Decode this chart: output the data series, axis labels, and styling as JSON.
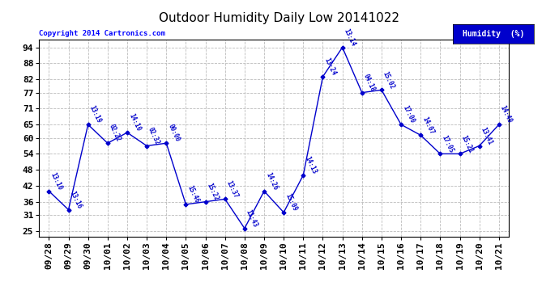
{
  "title": "Outdoor Humidity Daily Low 20141022",
  "copyright": "Copyright 2014 Cartronics.com",
  "legend_label": "Humidity  (%)",
  "dates": [
    "09/28",
    "09/29",
    "09/30",
    "10/01",
    "10/02",
    "10/03",
    "10/04",
    "10/05",
    "10/06",
    "10/07",
    "10/08",
    "10/09",
    "10/10",
    "10/11",
    "10/12",
    "10/13",
    "10/14",
    "10/15",
    "10/16",
    "10/17",
    "10/18",
    "10/19",
    "10/20",
    "10/21"
  ],
  "values": [
    40,
    33,
    65,
    58,
    62,
    57,
    58,
    35,
    36,
    37,
    26,
    40,
    32,
    46,
    83,
    94,
    77,
    78,
    65,
    61,
    54,
    54,
    57,
    65
  ],
  "time_labels": [
    "13:10",
    "13:16",
    "13:19",
    "02:22",
    "14:10",
    "02:32",
    "00:00",
    "15:46",
    "15:22",
    "13:37",
    "11:43",
    "14:26",
    "15:09",
    "14:13",
    "13:24",
    "13:14",
    "04:18",
    "15:02",
    "17:00",
    "14:07",
    "17:05",
    "15:21",
    "13:41",
    "14:49"
  ],
  "line_color": "#0000cc",
  "marker_color": "#0000cc",
  "background_color": "#ffffff",
  "grid_color": "#bbbbbb",
  "yticks": [
    25,
    31,
    36,
    42,
    48,
    54,
    60,
    65,
    71,
    77,
    82,
    88,
    94
  ],
  "ylim": [
    23,
    97
  ],
  "title_fontsize": 11,
  "tick_fontsize": 8,
  "label_fontsize": 7
}
